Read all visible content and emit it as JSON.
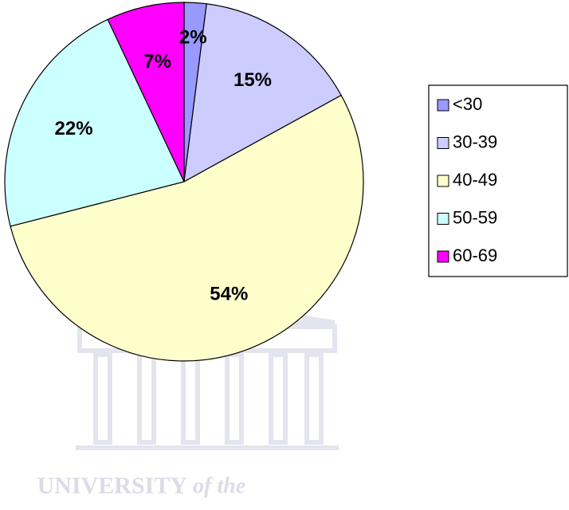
{
  "chart_data": {
    "type": "pie",
    "categories": [
      "<30",
      "30-39",
      "40-49",
      "50-59",
      "60-69"
    ],
    "values": [
      2,
      15,
      54,
      22,
      7
    ],
    "value_labels": [
      "2%",
      "15%",
      "54%",
      "22%",
      "7%"
    ],
    "colors": [
      "#9999ff",
      "#ccccff",
      "#ffffcc",
      "#ccffff",
      "#ff00ff"
    ],
    "legend": "right"
  },
  "watermark": [
    "UNIVERSITY",
    "of the"
  ]
}
